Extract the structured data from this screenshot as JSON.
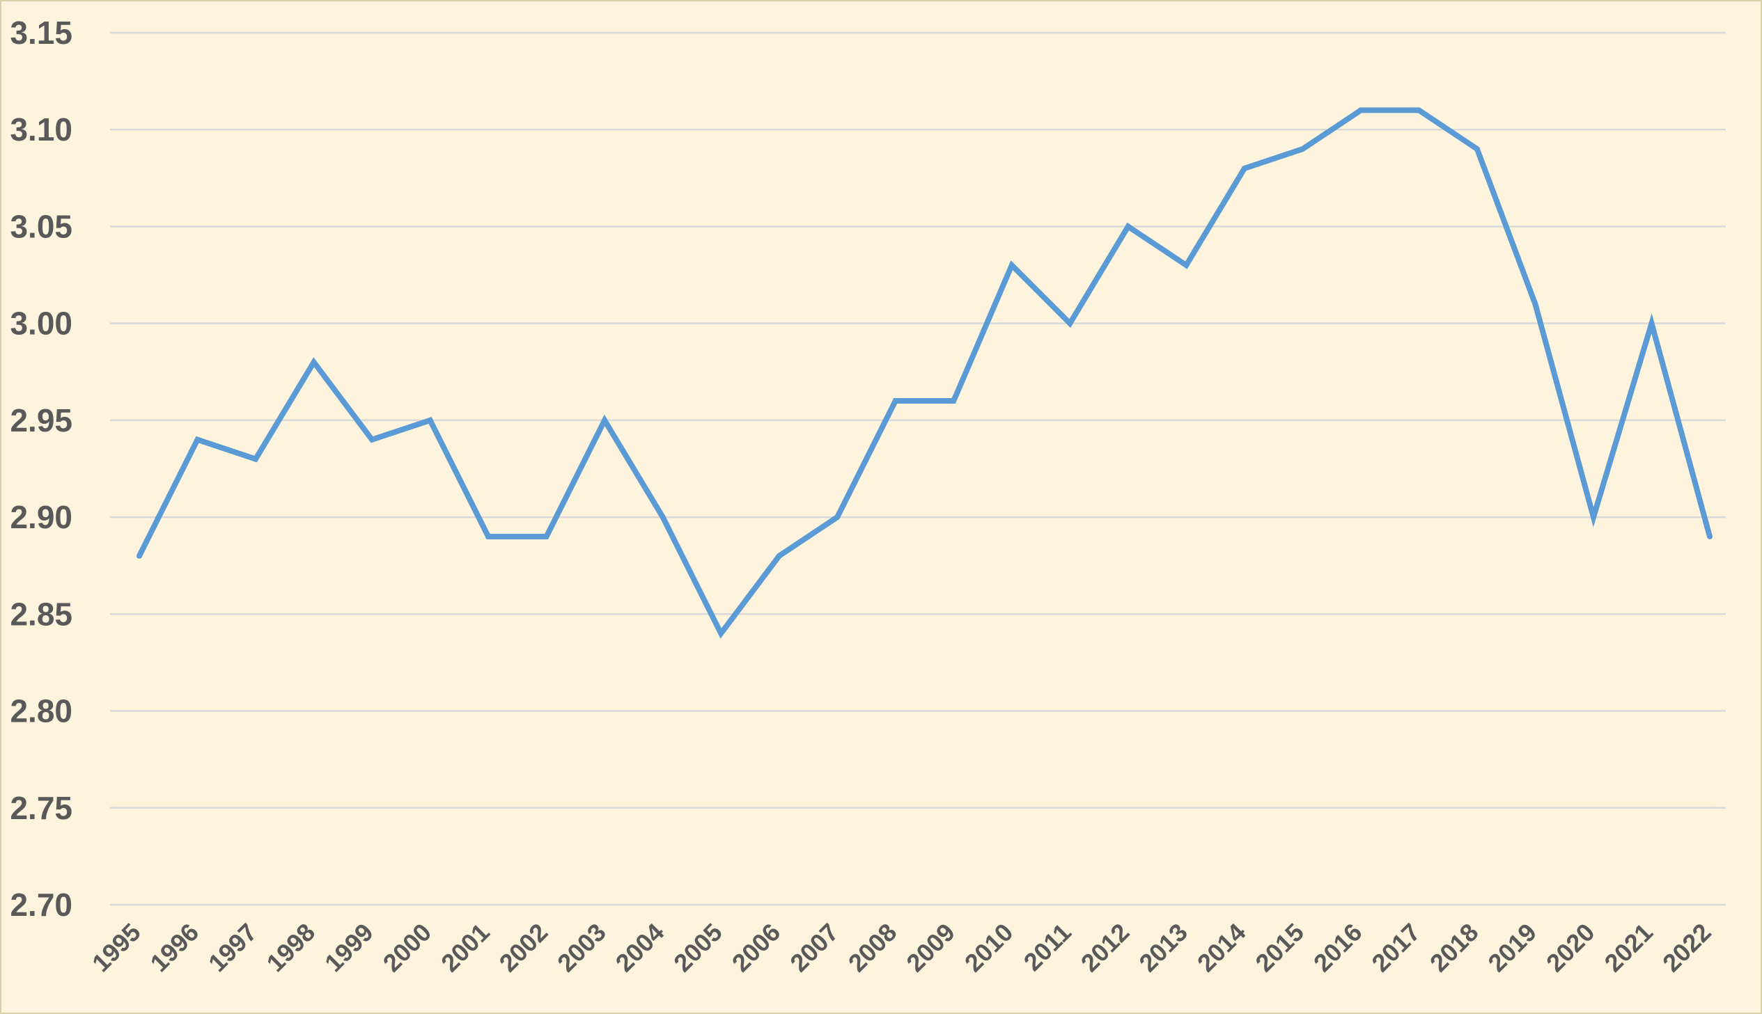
{
  "chart_data": {
    "type": "line",
    "title": "",
    "xlabel": "",
    "ylabel": "",
    "categories": [
      "1995",
      "1996",
      "1997",
      "1998",
      "1999",
      "2000",
      "2001",
      "2002",
      "2003",
      "2004",
      "2005",
      "2006",
      "2007",
      "2008",
      "2009",
      "2010",
      "2011",
      "2012",
      "2013",
      "2014",
      "2015",
      "2016",
      "2017",
      "2018",
      "2019",
      "2020",
      "2021",
      "2022"
    ],
    "series": [
      {
        "values": [
          2.88,
          2.94,
          2.93,
          2.98,
          2.94,
          2.95,
          2.89,
          2.89,
          2.95,
          2.9,
          2.84,
          2.88,
          2.9,
          2.96,
          2.96,
          3.03,
          3.0,
          3.05,
          3.03,
          3.08,
          3.09,
          3.11,
          3.11,
          3.09,
          3.01,
          2.9,
          3.0,
          2.89
        ],
        "color": "#5b9bd5"
      }
    ],
    "ylim": [
      2.7,
      3.15
    ],
    "yticks": [
      "2.70",
      "2.75",
      "2.80",
      "2.85",
      "2.90",
      "2.95",
      "3.00",
      "3.05",
      "3.10",
      "3.15"
    ],
    "grid": "horizontal",
    "legend": "none",
    "background_color": "#fef3dd",
    "gridline_color": "#d9d9d9",
    "tick_label_color": "#595959"
  }
}
